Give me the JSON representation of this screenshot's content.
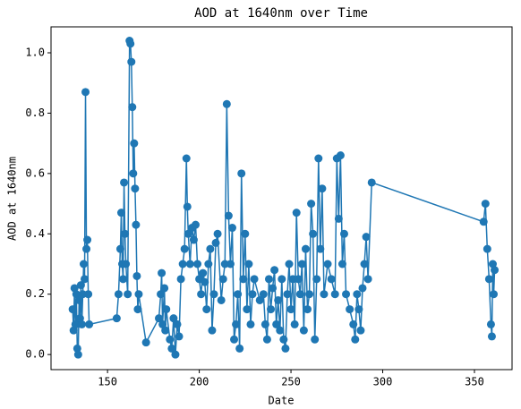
{
  "chart_data": {
    "type": "line",
    "title": "AOD at 1640nm over Time",
    "x_label": "Date",
    "y_label": "AOD at 1640nm",
    "x": [
      131,
      131.5,
      132,
      132.5,
      133,
      133.5,
      134,
      134.5,
      135,
      135.5,
      136,
      136.5,
      137,
      137.5,
      138,
      138.5,
      139,
      139.5,
      140,
      155,
      156,
      157,
      157.5,
      158,
      158.5,
      159,
      159.5,
      160,
      161,
      162,
      162.5,
      163,
      163.5,
      164,
      164.5,
      165,
      165.5,
      166,
      166.5,
      167,
      171,
      178,
      179,
      179.5,
      180,
      181,
      181.5,
      182,
      184,
      185,
      186,
      187,
      188,
      189,
      190,
      191,
      192,
      193,
      193.5,
      194,
      195,
      196,
      197,
      198,
      199,
      200,
      201,
      202,
      203,
      204,
      205,
      206,
      207,
      208,
      209,
      210,
      212,
      213,
      214,
      215,
      216,
      217,
      218,
      219,
      220,
      221,
      222,
      223,
      224,
      225,
      226,
      227,
      228,
      229,
      230,
      233,
      235,
      236,
      237,
      238,
      239,
      240,
      241,
      242,
      243,
      244,
      245,
      246,
      247,
      248,
      249,
      250,
      251,
      252,
      253,
      254,
      255,
      256,
      257,
      258,
      259,
      260,
      261,
      262,
      263,
      264,
      265,
      266,
      267,
      268,
      270,
      272,
      274,
      275,
      276,
      277,
      278,
      279,
      280,
      282,
      284,
      285,
      286,
      287,
      288,
      289,
      290,
      291,
      292,
      294,
      355,
      356,
      357,
      358,
      359,
      359.5,
      360,
      360.5,
      361
    ],
    "series": [
      {
        "name": "AOD at 1640nm",
        "color": "#1f77b4",
        "values": [
          0.15,
          0.08,
          0.22,
          0.1,
          0.2,
          0.02,
          0.0,
          0.18,
          0.12,
          0.23,
          0.1,
          0.2,
          0.3,
          0.25,
          0.87,
          0.35,
          0.38,
          0.2,
          0.1,
          0.12,
          0.2,
          0.35,
          0.47,
          0.3,
          0.25,
          0.57,
          0.4,
          0.3,
          0.2,
          1.04,
          1.03,
          0.97,
          0.82,
          0.6,
          0.7,
          0.55,
          0.43,
          0.26,
          0.15,
          0.2,
          0.04,
          0.12,
          0.2,
          0.27,
          0.1,
          0.22,
          0.08,
          0.15,
          0.05,
          0.02,
          0.12,
          0.0,
          0.1,
          0.06,
          0.25,
          0.3,
          0.35,
          0.65,
          0.49,
          0.4,
          0.3,
          0.42,
          0.38,
          0.43,
          0.3,
          0.25,
          0.2,
          0.27,
          0.24,
          0.15,
          0.3,
          0.35,
          0.08,
          0.2,
          0.37,
          0.4,
          0.18,
          0.25,
          0.3,
          0.83,
          0.46,
          0.3,
          0.42,
          0.05,
          0.1,
          0.2,
          0.02,
          0.6,
          0.25,
          0.4,
          0.15,
          0.3,
          0.1,
          0.2,
          0.25,
          0.18,
          0.2,
          0.1,
          0.05,
          0.25,
          0.15,
          0.22,
          0.28,
          0.1,
          0.18,
          0.08,
          0.25,
          0.05,
          0.02,
          0.2,
          0.3,
          0.15,
          0.25,
          0.1,
          0.47,
          0.25,
          0.2,
          0.3,
          0.08,
          0.35,
          0.15,
          0.2,
          0.5,
          0.4,
          0.05,
          0.25,
          0.65,
          0.35,
          0.55,
          0.2,
          0.3,
          0.25,
          0.2,
          0.65,
          0.45,
          0.66,
          0.3,
          0.4,
          0.2,
          0.15,
          0.1,
          0.05,
          0.2,
          0.15,
          0.08,
          0.22,
          0.3,
          0.39,
          0.25,
          0.57,
          0.44,
          0.5,
          0.35,
          0.25,
          0.1,
          0.06,
          0.3,
          0.2,
          0.28
        ]
      }
    ],
    "xlim": [
      119.2,
      370.5
    ],
    "ylim": [
      -0.05,
      1.086
    ],
    "xticks": [
      150,
      200,
      250,
      300,
      350
    ],
    "yticks": [
      {
        "value": 0,
        "label": "0.0"
      },
      {
        "value": 0.2,
        "label": "0.2"
      },
      {
        "value": 0.4,
        "label": "0.4"
      },
      {
        "value": 0.6,
        "label": "0.6"
      },
      {
        "value": 0.8,
        "label": "0.8"
      },
      {
        "value": 1,
        "label": "1.0"
      }
    ]
  }
}
